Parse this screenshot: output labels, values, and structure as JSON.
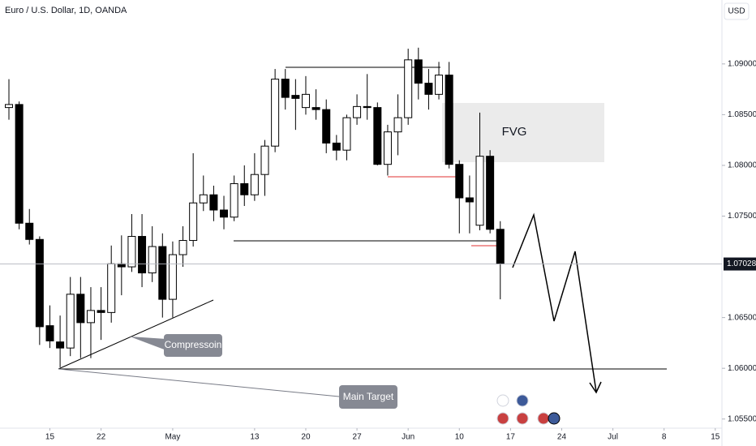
{
  "chart_data": {
    "type": "candlestick",
    "title": "Euro / U.S. Dollar, 1D, OANDA",
    "currency": "USD",
    "open": [
      1.0857,
      1.086,
      1.0743,
      1.0727,
      1.0642,
      1.0626,
      1.062,
      1.0673,
      1.0645,
      1.0657,
      1.0655,
      1.0703,
      1.07,
      1.073,
      1.0694,
      1.072,
      1.0668,
      1.0712,
      1.0726,
      1.0763,
      1.0771,
      1.0756,
      1.0749,
      1.0782,
      1.0771,
      1.0791,
      1.0819,
      1.0885,
      1.0869,
      1.0857,
      1.0857,
      1.0855,
      1.0822,
      1.0815,
      1.0847,
      1.0858,
      1.0857,
      1.0801,
      1.0833,
      1.0847,
      1.0904,
      1.0881,
      1.087,
      1.0889,
      1.0801,
      1.0768,
      1.0741,
      1.0809,
      1.0737
    ],
    "high": [
      1.0885,
      1.0863,
      1.0757,
      1.073,
      1.0662,
      1.0652,
      1.069,
      1.069,
      1.068,
      1.068,
      1.0721,
      1.0731,
      1.0752,
      1.0752,
      1.074,
      1.0733,
      1.0725,
      1.074,
      1.0812,
      1.079,
      1.078,
      1.077,
      1.079,
      1.08,
      1.0812,
      1.0825,
      1.0895,
      1.0895,
      1.0885,
      1.0888,
      1.0875,
      1.0865,
      1.083,
      1.085,
      1.087,
      1.089,
      1.0862,
      1.084,
      1.087,
      1.0915,
      1.0916,
      1.0895,
      1.0902,
      1.0902,
      1.0805,
      1.079,
      1.0852,
      1.0815,
      1.0745
    ],
    "low": [
      1.0845,
      1.0737,
      1.0722,
      1.0623,
      1.062,
      1.0601,
      1.0612,
      1.061,
      1.061,
      1.0628,
      1.0645,
      1.0672,
      1.0695,
      1.068,
      1.0685,
      1.065,
      1.065,
      1.07,
      1.072,
      1.0755,
      1.0745,
      1.0737,
      1.0745,
      1.076,
      1.0765,
      1.077,
      1.0813,
      1.0855,
      1.0835,
      1.085,
      1.0845,
      1.0812,
      1.0805,
      1.0805,
      1.084,
      1.0845,
      1.08,
      1.079,
      1.081,
      1.084,
      1.0865,
      1.0855,
      1.0865,
      1.0797,
      1.0733,
      1.0733,
      1.0736,
      1.0733,
      1.0668
    ],
    "close": [
      1.086,
      1.0743,
      1.0727,
      1.0641,
      1.0627,
      1.062,
      1.0673,
      1.0645,
      1.0657,
      1.0655,
      1.0703,
      1.07,
      1.073,
      1.0694,
      1.072,
      1.0668,
      1.0712,
      1.0726,
      1.0763,
      1.0771,
      1.0756,
      1.0749,
      1.0782,
      1.0771,
      1.0791,
      1.0819,
      1.0885,
      1.0867,
      1.0866,
      1.087,
      1.0855,
      1.0822,
      1.0815,
      1.0847,
      1.0858,
      1.0857,
      1.0801,
      1.0833,
      1.0847,
      1.0904,
      1.0881,
      1.087,
      1.0889,
      1.0801,
      1.0768,
      1.0764,
      1.0809,
      1.0737,
      1.0703
    ],
    "up_color": "#ffffff",
    "down_color": "#000000",
    "current_price": 1.07028,
    "ylim": [
      1.0541,
      1.0963
    ],
    "yticks": [
      {
        "value": 1.055,
        "label": "1.05500"
      },
      {
        "value": 1.06,
        "label": "1.06000"
      },
      {
        "value": 1.065,
        "label": "1.06500"
      },
      {
        "value": 1.075,
        "label": "1.07500"
      },
      {
        "value": 1.08,
        "label": "1.08000"
      },
      {
        "value": 1.085,
        "label": "1.08500"
      },
      {
        "value": 1.09,
        "label": "1.09000"
      }
    ],
    "xticks": [
      {
        "value": 4,
        "label": "15"
      },
      {
        "value": 9,
        "label": "22"
      },
      {
        "value": 16,
        "label": "May"
      },
      {
        "value": 24,
        "label": "13"
      },
      {
        "value": 29,
        "label": "20"
      },
      {
        "value": 34,
        "label": "27"
      },
      {
        "value": 39,
        "label": "Jun"
      },
      {
        "value": 44,
        "label": "10"
      },
      {
        "value": 49,
        "label": "17"
      },
      {
        "value": 54,
        "label": "24"
      },
      {
        "value": 59,
        "label": "Jul"
      },
      {
        "value": 64,
        "label": "8"
      },
      {
        "value": 69,
        "label": "15"
      }
    ],
    "annotations": [
      "FVG",
      "Compressoin",
      "Main Target"
    ],
    "grid": false
  }
}
